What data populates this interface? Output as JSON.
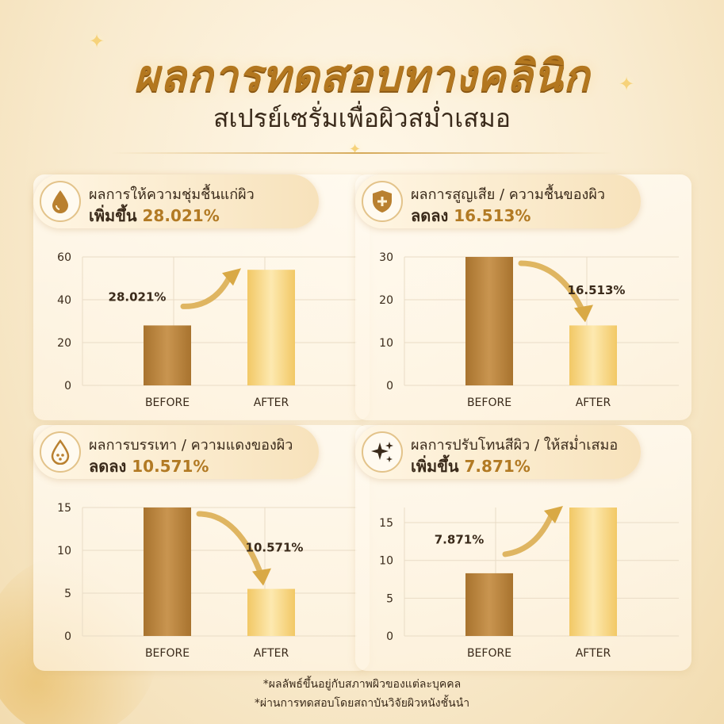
{
  "header": {
    "title": "ผลการทดสอบทางคลินิก",
    "subtitle": "สเปรย์เซรั่มเพื่อผิวสม่ำเสมอ"
  },
  "colors": {
    "before_bar": "#b78238",
    "after_bar": "#f5d27a",
    "accent": "#b3771f",
    "grid": "#e9dcc6"
  },
  "panels": [
    {
      "icon": "water-drop-icon",
      "label": "ผลการให้ความชุ่มชื้นแก่ผิว",
      "direction": "เพิ่มขึ้น",
      "value_text": "28.021%"
    },
    {
      "icon": "shield-plus-icon",
      "label": "ผลการสูญเสีย / ความชื้นของผิว",
      "direction": "ลดลง",
      "value_text": "16.513%"
    },
    {
      "icon": "water-drop-outline-icon",
      "label": "ผลการบรรเทา / ความแดงของผิว",
      "direction": "ลดลง",
      "value_text": "10.571%"
    },
    {
      "icon": "sparkles-icon",
      "label": "ผลการปรับโทนสีผิว / ให้สม่ำเสมอ",
      "direction": "เพิ่มขึ้น",
      "value_text": "7.871%"
    }
  ],
  "chart_data": [
    {
      "type": "bar",
      "categories": [
        "BEFORE",
        "AFTER"
      ],
      "values": [
        28,
        54
      ],
      "ylim": [
        0,
        60
      ],
      "yticks": [
        0,
        20,
        40,
        60
      ],
      "annotation": "28.021%",
      "trend": "up",
      "grid": true
    },
    {
      "type": "bar",
      "categories": [
        "BEFORE",
        "AFTER"
      ],
      "values": [
        30,
        14
      ],
      "ylim": [
        0,
        30
      ],
      "yticks": [
        0,
        10,
        20,
        30
      ],
      "annotation": "16.513%",
      "trend": "down",
      "grid": true
    },
    {
      "type": "bar",
      "categories": [
        "BEFORE",
        "AFTER"
      ],
      "values": [
        15,
        5.5
      ],
      "ylim": [
        0,
        15
      ],
      "yticks": [
        0,
        5,
        10,
        15
      ],
      "annotation": "10.571%",
      "trend": "down",
      "grid": true
    },
    {
      "type": "bar",
      "categories": [
        "BEFORE",
        "AFTER"
      ],
      "values": [
        8.3,
        17
      ],
      "ylim": [
        0,
        17
      ],
      "yticks": [
        0,
        5,
        10,
        15
      ],
      "annotation": "7.871%",
      "trend": "up",
      "grid": true
    }
  ],
  "footnotes": [
    "*ผลลัพธ์ขึ้นอยู่กับสภาพผิวของแต่ละบุคคล",
    "*ผ่านการทดสอบโดยสถาบันวิจัยผิวหนังชั้นนำ"
  ]
}
